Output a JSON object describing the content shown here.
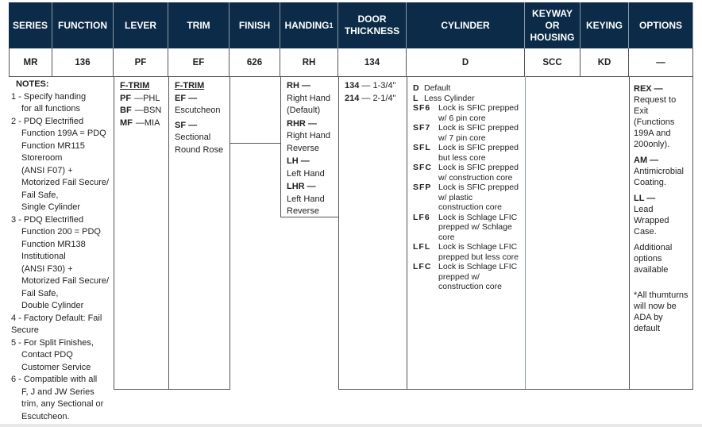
{
  "header": [
    "SERIES",
    "FUNCTION",
    "LEVER",
    "TRIM",
    "FINISH",
    "HANDING",
    "DOOR THICKNESS",
    "CYLINDER",
    "KEYWAY OR HOUSING",
    "KEYING",
    "OPTIONS"
  ],
  "handing_sup": "1",
  "values": [
    "MR",
    "136",
    "PF",
    "EF",
    "626",
    "RH",
    "134",
    "D",
    "SCC",
    "KD",
    "—"
  ],
  "notes": {
    "title": "NOTES:",
    "items": [
      [
        "1 - Specify handing",
        "for all functions"
      ],
      [
        "2 - PDQ Electrified",
        "Function 199A = PDQ",
        "Function MR115",
        "Storeroom",
        "(ANSI F07) +",
        "Motorized Fail Secure/",
        "Fail Safe,",
        "Single Cylinder"
      ],
      [
        "3 - PDQ Electrified",
        "Function 200 = PDQ",
        "Function MR138",
        "Institutional",
        "(ANSI F30) +",
        "Motorized Fail Secure/",
        "Fail Safe,",
        "Double Cylinder"
      ],
      [
        "4 - Factory Default: Fail",
        "Secure"
      ],
      [
        "5 - For Split Finishes,",
        "Contact PDQ",
        "Customer Service"
      ],
      [
        "6 - Compatible with all",
        "F, J and JW Series",
        "trim, any Sectional or",
        "Escutcheon."
      ]
    ]
  },
  "lever": {
    "heading": "F-TRIM",
    "items": [
      {
        "code": "PF",
        "desc": "—PHL"
      },
      {
        "code": "BF",
        "desc": "—BSN"
      },
      {
        "code": "MF",
        "desc": "—MIA"
      }
    ]
  },
  "trim": {
    "heading": "F-TRIM",
    "items": [
      {
        "code": "EF —",
        "desc": "Escutcheon"
      },
      {
        "code": "SF —",
        "desc": "Sectional Round Rose"
      }
    ]
  },
  "handing": [
    {
      "code": "RH —",
      "desc": "Right Hand (Default)"
    },
    {
      "code": "RHR —",
      "desc": "Right Hand Reverse"
    },
    {
      "code": "LH —",
      "desc": "Left Hand"
    },
    {
      "code": "LHR —",
      "desc": "Left Hand Reverse"
    }
  ],
  "door": [
    {
      "code": "134",
      "desc": " — 1-3/4\""
    },
    {
      "code": "214",
      "desc": " — 2-1/4\""
    }
  ],
  "cylinder": [
    {
      "code": "D",
      "desc": "Default"
    },
    {
      "code": "L",
      "desc": "Less Cylinder"
    },
    {
      "code": "SF6",
      "desc": "Lock is SFIC prepped w/ 6 pin core"
    },
    {
      "code": "SF7",
      "desc": "Lock is SFIC prepped w/ 7 pin core"
    },
    {
      "code": "SFL",
      "desc": "Lock is SFIC prepped but less core"
    },
    {
      "code": "SFC",
      "desc": "Lock is SFIC prepped w/ construction core"
    },
    {
      "code": "SFP",
      "desc": "Lock is SFIC prepped w/ plastic construction core"
    },
    {
      "code": "LF6",
      "desc": "Lock is Schlage LFIC prepped w/ Schlage core"
    },
    {
      "code": "LFL",
      "desc": "Lock is Schlage LFIC prepped but less core"
    },
    {
      "code": "LFC",
      "desc": "Lock is Schlage LFIC prepped w/ construction core"
    }
  ],
  "options": [
    {
      "code": "REX —",
      "desc": "Request to Exit (Functions 199A and 200only)."
    },
    {
      "code": "AM —",
      "desc": "Antimicrobial Coating."
    },
    {
      "code": "LL —",
      "desc": "Lead Wrapped Case."
    },
    {
      "code": "",
      "desc": "Additional options available"
    },
    {
      "code": "",
      "desc": "*All thumturns will now be ADA by default"
    }
  ]
}
